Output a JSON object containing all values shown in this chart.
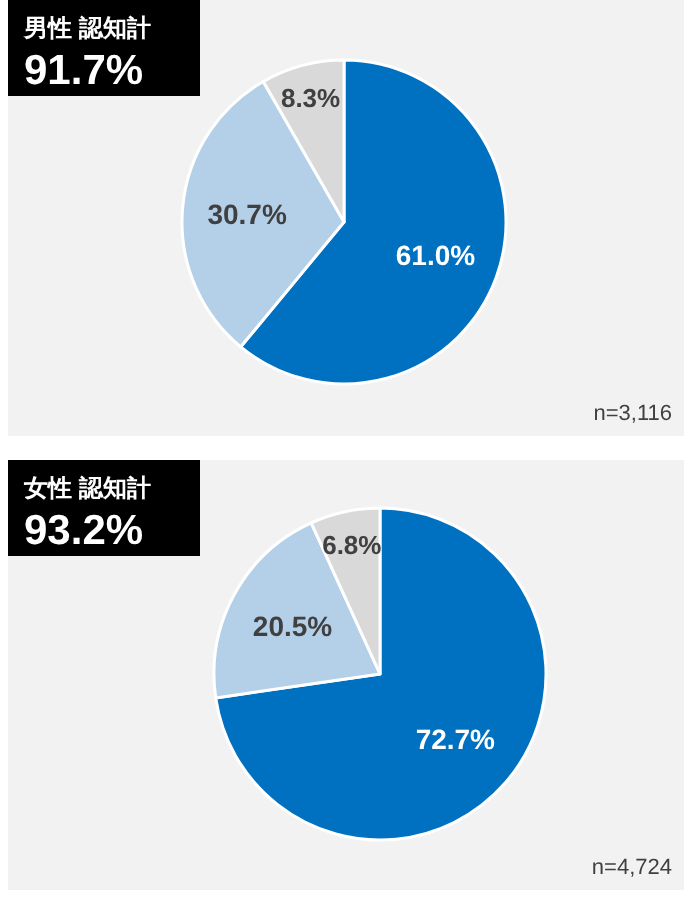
{
  "chart_data": [
    {
      "type": "pie",
      "title": "男性 認知計",
      "subtitle": "91.7%",
      "categories": [
        null,
        null,
        null
      ],
      "values": [
        61.0,
        30.7,
        8.3
      ],
      "colors": [
        "#0070c0",
        "#b4d0e8",
        "#d9d9d9"
      ],
      "value_labels": [
        "61.0%",
        "30.7%",
        "8.3%"
      ],
      "annotations": [
        "n=3,116"
      ]
    },
    {
      "type": "pie",
      "title": "女性 認知計",
      "subtitle": "93.2%",
      "categories": [
        null,
        null,
        null
      ],
      "values": [
        72.7,
        20.5,
        6.8
      ],
      "colors": [
        "#0070c0",
        "#b4d0e8",
        "#d9d9d9"
      ],
      "value_labels": [
        "72.7%",
        "20.5%",
        "6.8%"
      ],
      "annotations": [
        "n=4,724"
      ]
    }
  ]
}
